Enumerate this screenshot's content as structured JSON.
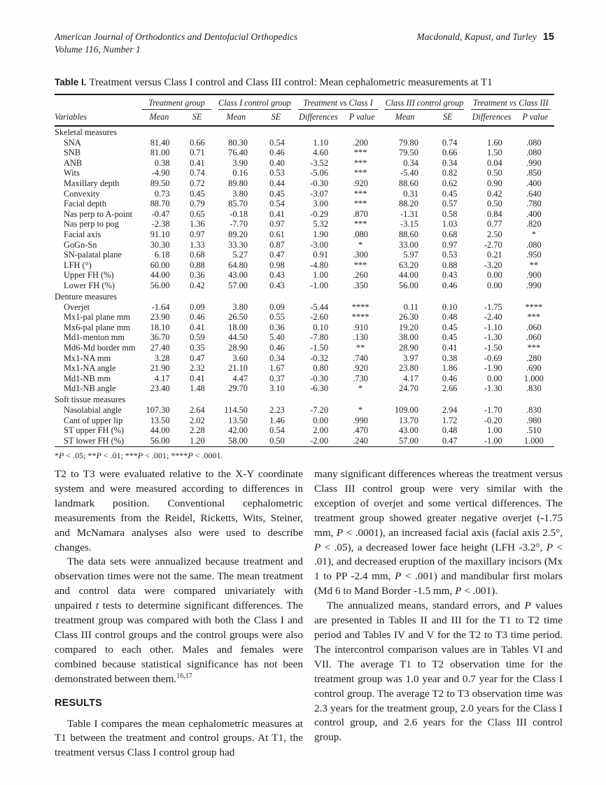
{
  "header": {
    "journal": "American Journal of Orthodontics and Dentofacial Orthopedics",
    "volume": "Volume 116, Number 1",
    "authors": "Macdonald, Kapust, and Turley",
    "page_number": "15"
  },
  "table": {
    "label": "Table I.",
    "caption": "Treatment versus Class I control and Class III control: Mean cephalometric measurements at T1",
    "group_headers": [
      "Treatment group",
      "Class I control group",
      "Treatment vs Class I",
      "Class III control group",
      "Treatment vs Class III"
    ],
    "col_headers": [
      "Variables",
      "Mean",
      "SE",
      "Mean",
      "SE",
      "Differences",
      "P value",
      "Mean",
      "SE",
      "Differences",
      "P value"
    ],
    "sections": [
      {
        "name": "Skeletal measures",
        "rows": [
          {
            "variable": "SNA",
            "values": [
              "81.40",
              "0.66",
              "80.30",
              "0.54",
              "1.10",
              ".200",
              "79.80",
              "0.74",
              "1.60",
              ".080"
            ]
          },
          {
            "variable": "SNB",
            "values": [
              "81.00",
              "0.71",
              "76.40",
              "0.46",
              "4.60",
              "***",
              "79.50",
              "0.66",
              "1.50",
              ".080"
            ]
          },
          {
            "variable": "ANB",
            "values": [
              "0.38",
              "0.41",
              "3.90",
              "0.40",
              "-3.52",
              "***",
              "0.34",
              "0.34",
              "0.04",
              ".990"
            ]
          },
          {
            "variable": "Wits",
            "values": [
              "-4.90",
              "0.74",
              "0.16",
              "0.53",
              "-5.06",
              "***",
              "-5.40",
              "0.82",
              "0.50",
              ".850"
            ]
          },
          {
            "variable": "Maxillary depth",
            "values": [
              "89.50",
              "0.72",
              "89.80",
              "0.44",
              "-0.30",
              ".920",
              "88.60",
              "0.62",
              "0.90",
              ".400"
            ]
          },
          {
            "variable": "Convexity",
            "values": [
              "0.73",
              "0.45",
              "3.80",
              "0.45",
              "-3.07",
              "***",
              "0.31",
              "0.45",
              "0.42",
              ".640"
            ]
          },
          {
            "variable": "Facial depth",
            "values": [
              "88.70",
              "0.79",
              "85.70",
              "0.54",
              "3.00",
              "***",
              "88.20",
              "0.57",
              "0.50",
              ".780"
            ]
          },
          {
            "variable": "Nas perp to A-point",
            "values": [
              "-0.47",
              "0.65",
              "-0.18",
              "0.41",
              "-0.29",
              ".870",
              "-1.31",
              "0.58",
              "0.84",
              ".400"
            ]
          },
          {
            "variable": "Nas perp to pog",
            "values": [
              "-2.38",
              "1.36",
              "-7.70",
              "0.97",
              "5.32",
              "***",
              "-3.15",
              "1.03",
              "0.77",
              ".820"
            ]
          },
          {
            "variable": "Facial axis",
            "values": [
              "91.10",
              "0.97",
              "89.20",
              "0.61",
              "1.90",
              ".080",
              "88.60",
              "0.68",
              "2.50",
              "*"
            ]
          },
          {
            "variable": "GoGn-Sn",
            "values": [
              "30.30",
              "1.33",
              "33.30",
              "0.87",
              "-3.00",
              "*",
              "33.00",
              "0.97",
              "-2.70",
              ".080"
            ]
          },
          {
            "variable": "SN-palatal plane",
            "values": [
              "6.18",
              "0.68",
              "5.27",
              "0.47",
              "0.91",
              ".300",
              "5.97",
              "0.53",
              "0.21",
              ".950"
            ]
          },
          {
            "variable": "LFH (°)",
            "values": [
              "60.00",
              "0.88",
              "64.80",
              "0.98",
              "-4.80",
              "***",
              "63.20",
              "0.88",
              "-3.20",
              "**"
            ]
          },
          {
            "variable": "Upper FH (%)",
            "values": [
              "44.00",
              "0.36",
              "43.00",
              "0.43",
              "1.00",
              ".260",
              "44.00",
              "0.43",
              "0.00",
              ".900"
            ]
          },
          {
            "variable": "Lower FH (%)",
            "values": [
              "56.00",
              "0.42",
              "57.00",
              "0.43",
              "-1.00",
              ".350",
              "56.00",
              "0.46",
              "0.00",
              ".990"
            ]
          }
        ]
      },
      {
        "name": "Denture measures",
        "rows": [
          {
            "variable": "Overjet",
            "values": [
              "-1.64",
              "0.09",
              "3.80",
              "0.09",
              "-5.44",
              "****",
              "0.11",
              "0.10",
              "-1.75",
              "****"
            ]
          },
          {
            "variable": "Mx1-pal plane mm",
            "values": [
              "23.90",
              "0.46",
              "26.50",
              "0.55",
              "-2.60",
              "****",
              "26.30",
              "0.48",
              "-2.40",
              "***"
            ]
          },
          {
            "variable": "Mx6-pal plane mm",
            "values": [
              "18.10",
              "0.41",
              "18.00",
              "0.36",
              "0.10",
              ".910",
              "19.20",
              "0.45",
              "-1.10",
              ".060"
            ]
          },
          {
            "variable": "Md1-menton mm",
            "values": [
              "36.70",
              "0.59",
              "44.50",
              "5.40",
              "-7.80",
              ".130",
              "38.00",
              "0.45",
              "-1.30",
              ".060"
            ]
          },
          {
            "variable": "Md6-Md border mm",
            "values": [
              "27.40",
              "0.35",
              "28.90",
              "0.46",
              "-1.50",
              "**",
              "28.90",
              "0.41",
              "-1.50",
              "***"
            ]
          },
          {
            "variable": "Mx1-NA mm",
            "values": [
              "3.28",
              "0.47",
              "3.60",
              "0.34",
              "-0.32",
              ".740",
              "3.97",
              "0.38",
              "-0.69",
              ".280"
            ]
          },
          {
            "variable": "Mx1-NA angle",
            "values": [
              "21.90",
              "2.32",
              "21.10",
              "1.67",
              "0.80",
              ".920",
              "23.80",
              "1.86",
              "-1.90",
              ".690"
            ]
          },
          {
            "variable": "Md1-NB mm",
            "values": [
              "4.17",
              "0.41",
              "4.47",
              "0.37",
              "-0.30",
              ".730",
              "4.17",
              "0.46",
              "0.00",
              "1.000"
            ]
          },
          {
            "variable": "Md1-NB angle",
            "values": [
              "23.40",
              "1.48",
              "29.70",
              "3.10",
              "-6.30",
              "*",
              "24.70",
              "2.66",
              "-1.30",
              ".830"
            ]
          }
        ]
      },
      {
        "name": "Soft tissue measures",
        "rows": [
          {
            "variable": "Nasolabial angle",
            "values": [
              "107.30",
              "2.64",
              "114.50",
              "2.23",
              "-7.20",
              "*",
              "109.00",
              "2.94",
              "-1.70",
              ".830"
            ]
          },
          {
            "variable": "Cant of upper lip",
            "values": [
              "13.50",
              "2.02",
              "13.50",
              "1.46",
              "0.00",
              ".990",
              "13.70",
              "1.72",
              "-0.20",
              ".980"
            ]
          },
          {
            "variable": "ST upper FH (%)",
            "values": [
              "44.00",
              "2.28",
              "42.00",
              "0.54",
              "2.00",
              ".470",
              "43.00",
              "0.48",
              "1.00",
              ".510"
            ]
          },
          {
            "variable": "ST lower FH (%)",
            "values": [
              "56.00",
              "1.20",
              "58.00",
              "0.50",
              "-2.00",
              ".240",
              "57.00",
              "0.47",
              "-1.00",
              "1.000"
            ]
          }
        ]
      }
    ],
    "footnote": "*P < .05; **P < .01; ***P < .001; ****P < .0001."
  },
  "body": {
    "results_heading": "RESULTS",
    "left_col": {
      "p1": "T2 to T3 were evaluated relative to the X-Y coordinate system and were measured according to differences in landmark position. Conventional cephalometric measurements from the Reidel, Ricketts, Wits, Steiner, and McNamara analyses also were used to describe changes.",
      "p2": "The data sets were annualized because treatment and observation times were not the same. The mean treatment and control data were compared univariately with unpaired t tests to determine significant differences. The treatment group was compared with both the Class I and Class III control groups and the control groups were also compared to each other. Males and females were combined because statistical significance has not been demonstrated between them.",
      "p2_refs": "16,17",
      "p3": "Table I compares the mean cephalometric measures at T1 between the treatment and control groups. At T1, the treatment versus Class I control group had"
    },
    "right_col": {
      "p1": "many significant differences whereas the treatment versus Class III control group were very similar with the exception of overjet and some vertical differences. The treatment group showed greater negative overjet (-1.75 mm, P < .0001), an increased facial axis (facial axis 2.5°, P < .05), a decreased lower face height (LFH -3.2°, P < .01), and decreased eruption of the maxillary incisors (Mx 1 to PP -2.4 mm, P < .001) and mandibular first molars (Md 6 to Mand Border -1.5 mm, P < .001).",
      "p2": "The annualized means, standard errors, and P values are presented in Tables II and III for the T1 to T2 time period and Tables IV and V for the T2 to T3 time period. The intercontrol comparison values are in Tables VI and VII. The average T1 to T2 observation time for the treatment group was 1.0 year and 0.7 year for the Class I control group. The average T2 to T3 observation time was 2.3 years for the treatment group, 2.0 years for the Class I control group, and 2.6 years for the Class III control group."
    }
  }
}
